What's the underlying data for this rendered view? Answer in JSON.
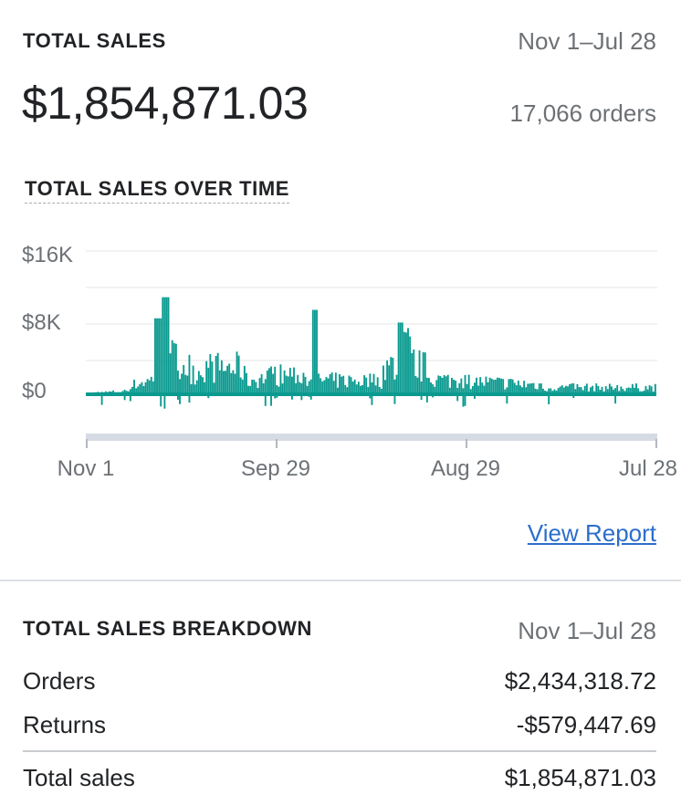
{
  "summary": {
    "title": "TOTAL SALES",
    "date_range": "Nov 1–Jul 28",
    "total_amount": "$1,854,871.03",
    "orders": "17,066 orders"
  },
  "chart": {
    "title": "TOTAL SALES OVER TIME",
    "link_label": "View Report"
  },
  "chart_data": {
    "type": "bar",
    "title": "TOTAL SALES OVER TIME",
    "xlabel": "",
    "ylabel": "",
    "y_ticks": [
      "$16K",
      "$8K",
      "$0"
    ],
    "x_ticks": [
      "Nov 1",
      "Sep 29",
      "Aug 29",
      "Jul 28"
    ],
    "ylim": [
      -4000,
      16000
    ],
    "grid": true,
    "color": "#0a9a8f",
    "series_overview": [
      {
        "segment": "Nov 1 – early",
        "approx_daily_sales": [
          0,
          300,
          500,
          1500
        ]
      },
      {
        "segment": "first spike",
        "approx_peak": 11500
      },
      {
        "segment": "Sep 29 area",
        "approx_peak": 10000
      },
      {
        "segment": "Aug 29 area",
        "approx_peak": 8500
      },
      {
        "segment": "to Jul 28",
        "approx_daily_sales": [
          500,
          1500,
          2500
        ]
      }
    ]
  },
  "breakdown": {
    "title": "TOTAL SALES BREAKDOWN",
    "date_range": "Nov 1–Jul 28",
    "rows": [
      {
        "label": "Orders",
        "value": "$2,434,318.72"
      },
      {
        "label": "Returns",
        "value": "-$579,447.69"
      }
    ],
    "total": {
      "label": "Total sales",
      "value": "$1,854,871.03"
    }
  },
  "colors": {
    "accent": "#0a9a8f",
    "link": "#2c6ecb",
    "text": "#212326",
    "muted": "#6d7175"
  }
}
